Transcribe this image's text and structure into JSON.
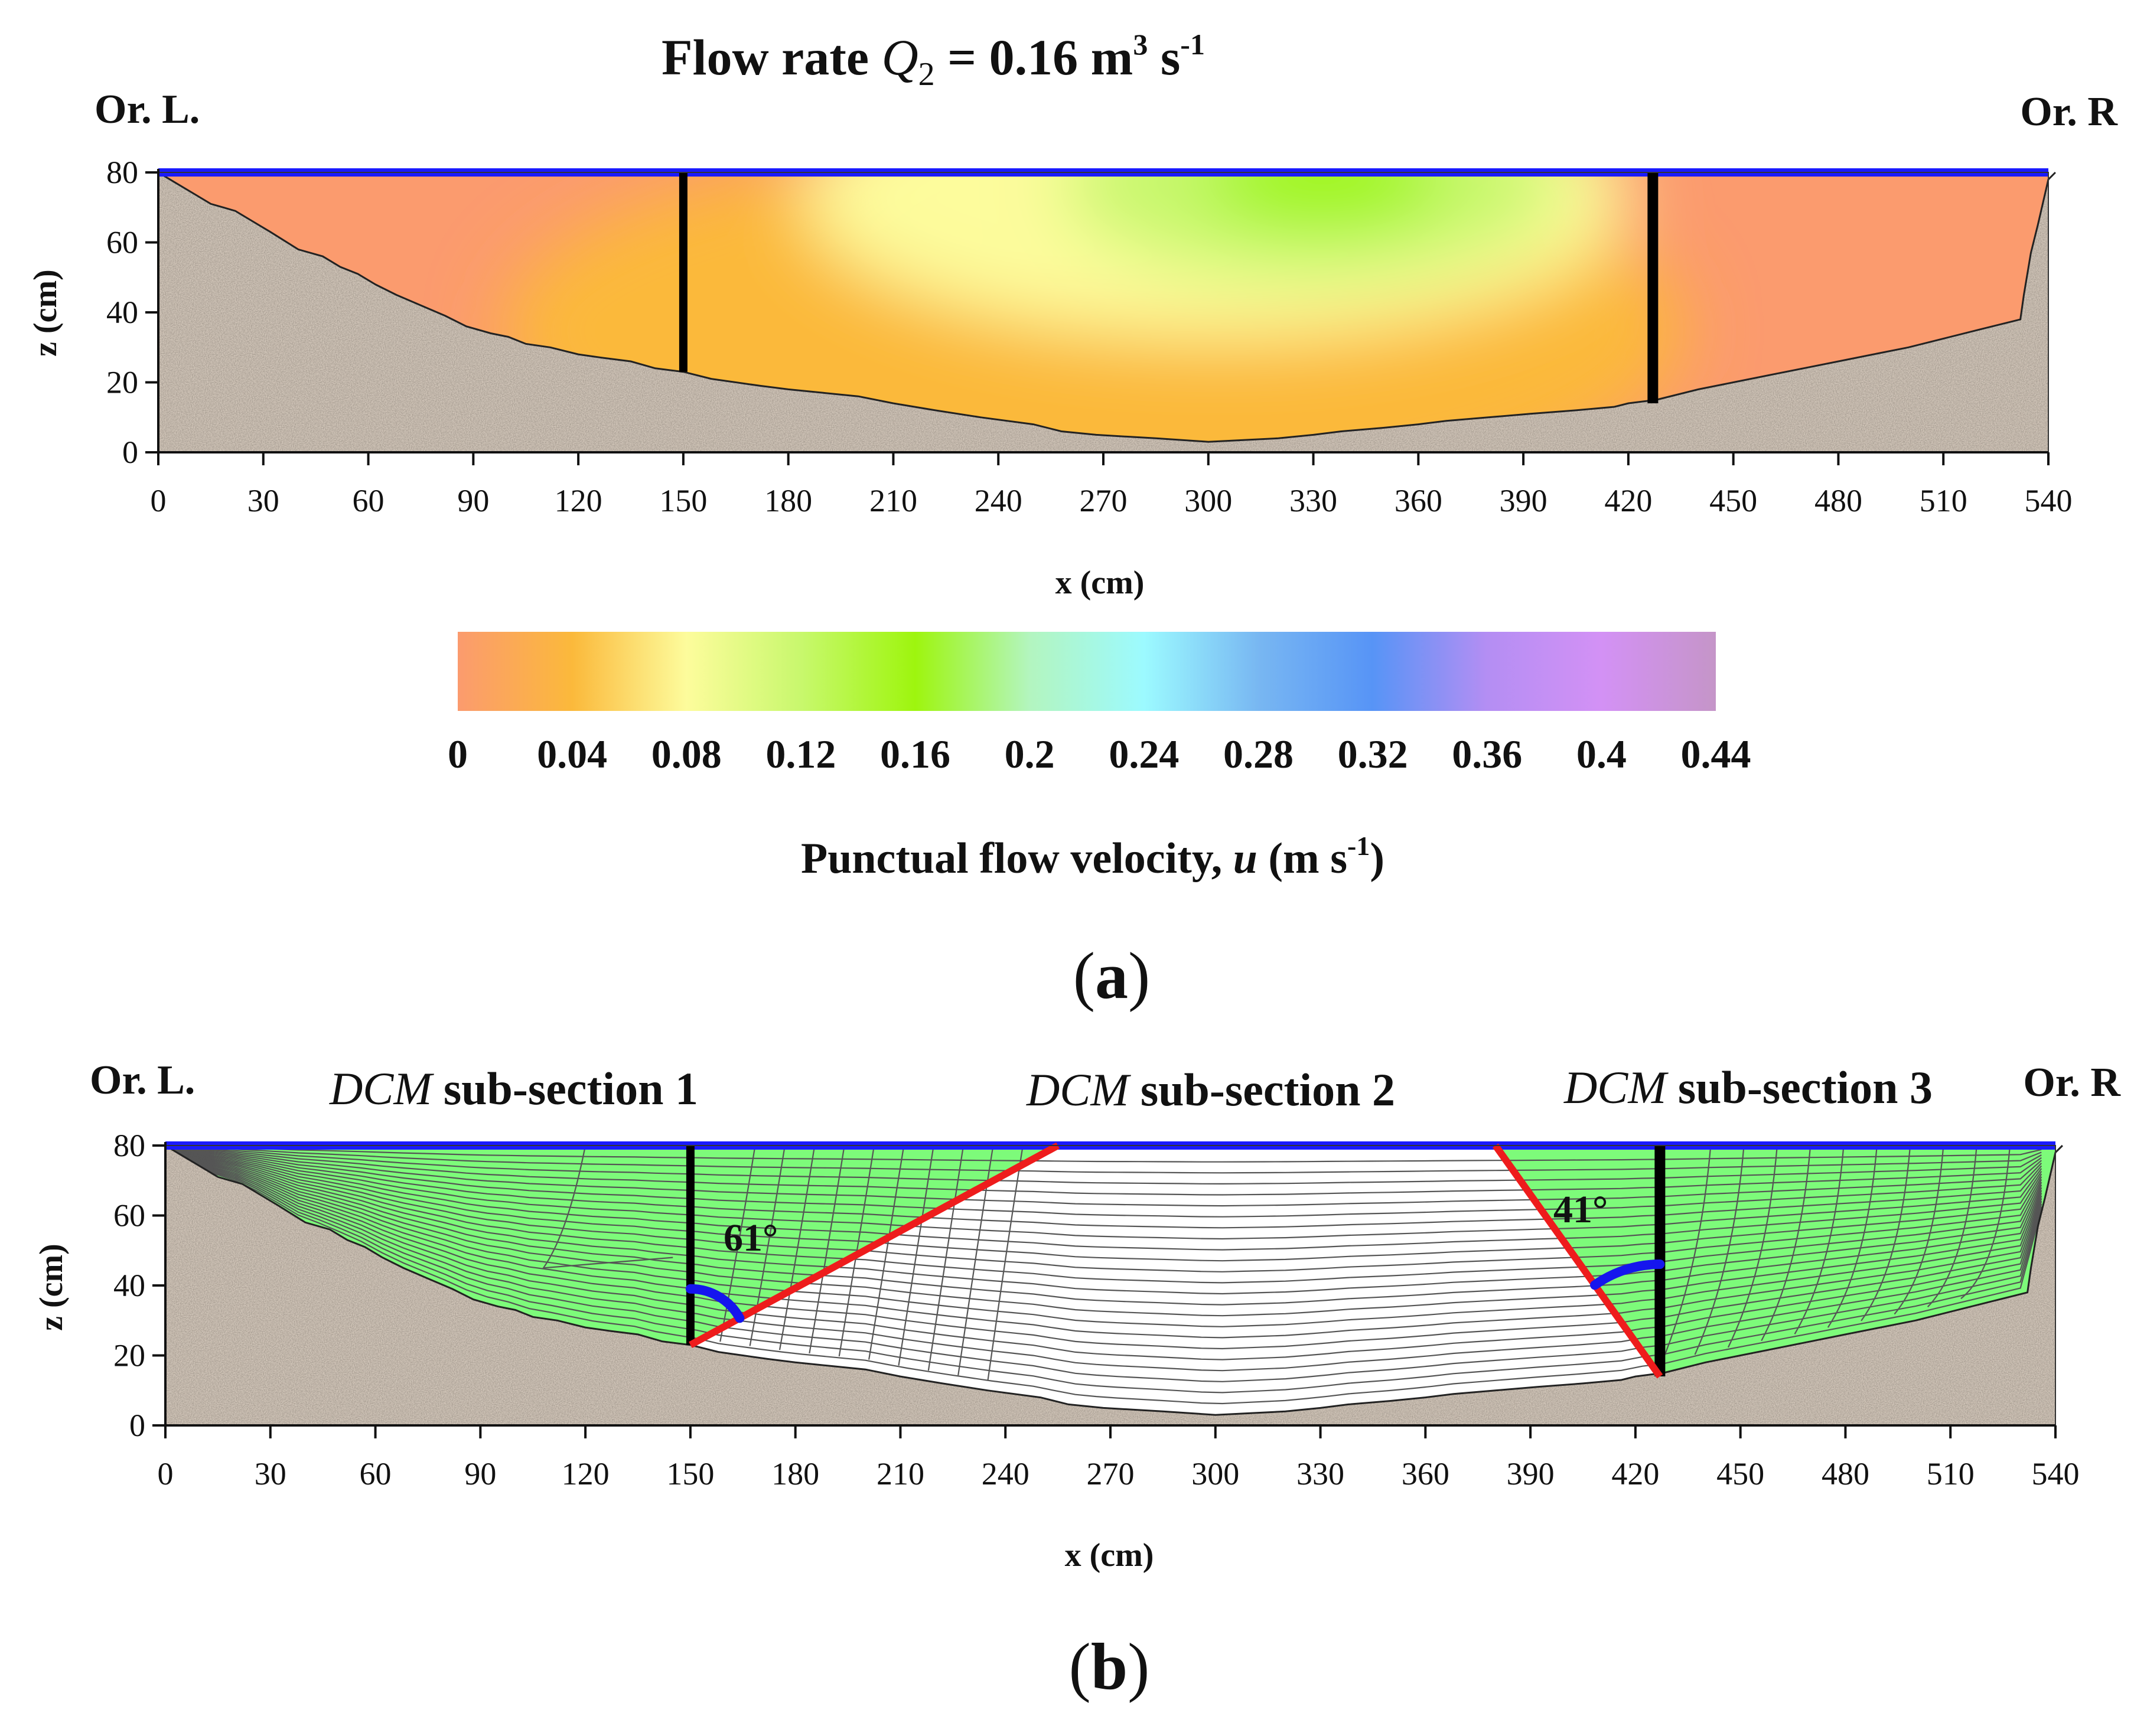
{
  "chart_data": [
    {
      "type": "heatmap",
      "panel_label": "a",
      "title": "Flow rate Q2 = 0.16 m3 s-1",
      "title_parts": {
        "lead": "Flow rate ",
        "symbol": "Q",
        "subscript": "2",
        "equals": " = 0.16 m",
        "cube": "3",
        "s": " s",
        "inv": "-1"
      },
      "xlabel": "x (cm)",
      "ylabel": "z (cm)",
      "xlim": [
        0,
        540
      ],
      "ylim": [
        0,
        80
      ],
      "x_ticks": [
        "0",
        "30",
        "60",
        "90",
        "120",
        "150",
        "180",
        "210",
        "240",
        "270",
        "300",
        "330",
        "360",
        "390",
        "420",
        "450",
        "480",
        "510",
        "540"
      ],
      "y_ticks": [
        "0",
        "20",
        "40",
        "60",
        "80"
      ],
      "bank_left_label": "Or. L.",
      "bank_right_label": "Or. R",
      "water_surface_z": 80,
      "bed_profile": {
        "x": [
          0,
          5,
          10,
          15,
          22,
          27,
          32,
          40,
          47,
          52,
          57,
          62,
          68,
          75,
          82,
          88,
          95,
          100,
          105,
          112,
          120,
          127,
          135,
          142,
          150,
          158,
          165,
          172,
          180,
          190,
          200,
          210,
          222,
          235,
          250,
          258,
          268,
          285,
          300,
          320,
          330,
          338,
          350,
          360,
          368,
          380,
          392,
          405,
          416,
          420,
          428,
          440,
          450,
          460,
          470,
          480,
          490,
          500,
          508,
          520,
          532,
          533,
          535,
          537,
          540,
          542
        ],
        "z": [
          80,
          77,
          74,
          71,
          69,
          66,
          63,
          58,
          56,
          53,
          51,
          48,
          45,
          42,
          39,
          36,
          34,
          33,
          31,
          30,
          28,
          27,
          26,
          24,
          23,
          21,
          20,
          19,
          18,
          17,
          16,
          14,
          12,
          10,
          8,
          6,
          5,
          4,
          3,
          4,
          5,
          6,
          7,
          8,
          9,
          10,
          11,
          12,
          13,
          14,
          15,
          18,
          20,
          22,
          24,
          26,
          28,
          30,
          32,
          35,
          38,
          45,
          57,
          65,
          78,
          80
        ]
      },
      "verticals": [
        {
          "x": 150,
          "z_bottom": 23
        },
        {
          "x": 427,
          "z_bottom": 14
        }
      ],
      "velocity_field_note_values_m_s": {
        "bank_min": 0.0,
        "core_max": 0.2
      },
      "colorbar": {
        "ticks": [
          "0",
          "0.04",
          "0.08",
          "0.12",
          "0.16",
          "0.2",
          "0.24",
          "0.28",
          "0.32",
          "0.36",
          "0.4",
          "0.44"
        ],
        "label_main": "Punctual flow velocity, ",
        "label_symbol": "u",
        "label_units": " (m s",
        "label_inv": "-1",
        "label_close": ")",
        "colors": [
          "#fb9b6e",
          "#fbb93b",
          "#fdfc9c",
          "#c8f86d",
          "#9ef50e",
          "#b3f5bf",
          "#9cfaff",
          "#78b7f2",
          "#5794f6",
          "#b48ef3",
          "#d391f5",
          "#c595c8"
        ]
      }
    },
    {
      "type": "heatmap",
      "panel_label": "b",
      "xlabel": "x (cm)",
      "ylabel": "z (cm)",
      "xlim": [
        0,
        540
      ],
      "ylim": [
        0,
        80
      ],
      "x_ticks": [
        "0",
        "30",
        "60",
        "90",
        "120",
        "150",
        "180",
        "210",
        "240",
        "270",
        "300",
        "330",
        "360",
        "390",
        "420",
        "450",
        "480",
        "510",
        "540"
      ],
      "y_ticks": [
        "0",
        "20",
        "40",
        "60",
        "80"
      ],
      "bank_left_label": "Or. L.",
      "bank_right_label": "Or. R",
      "subsections": [
        {
          "method": "DCM",
          "label": " sub-section 1"
        },
        {
          "method": "DCM",
          "label": " sub-section 2"
        },
        {
          "method": "DCM",
          "label": " sub-section 3"
        }
      ],
      "interface_lines": [
        {
          "x1": 150,
          "z1": 23,
          "x2": 255,
          "z2": 80
        },
        {
          "x1": 380,
          "z1": 80,
          "x2": 427,
          "z2": 14
        }
      ],
      "angles": [
        {
          "label": "61°",
          "x": 150,
          "z": 23
        },
        {
          "label": "41°",
          "x": 427,
          "z": 14
        }
      ],
      "verticals": [
        {
          "x": 150,
          "z_bottom": 23
        },
        {
          "x": 427,
          "z_bottom": 14
        }
      ],
      "colors": {
        "bank_zone": "#7dfb7a",
        "core_zone": "#ffffff",
        "interface": "#ee1c1c",
        "surface": "#1a1aff",
        "angle_arc": "#1515ee"
      }
    }
  ]
}
